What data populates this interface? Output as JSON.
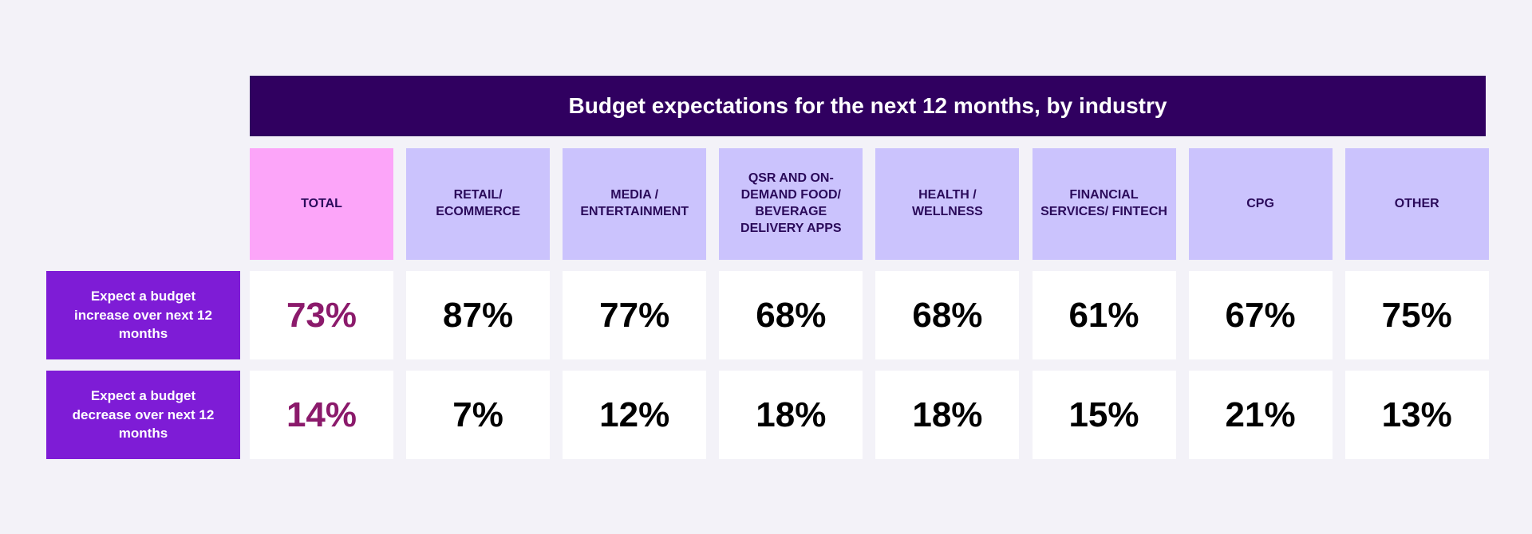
{
  "chart_data": {
    "type": "table",
    "title": "Budget expectations for the next 12 months, by industry",
    "columns": [
      "TOTAL",
      "RETAIL/ ECOMMERCE",
      "MEDIA / ENTERTAINMENT",
      "QSR AND ON-DEMAND FOOD/ BEVERAGE DELIVERY APPS",
      "HEALTH / WELLNESS",
      "FINANCIAL SERVICES/ FINTECH",
      "CPG",
      "OTHER"
    ],
    "rows": [
      {
        "label": "Expect a budget increase over next 12 months",
        "values": [
          "73%",
          "87%",
          "77%",
          "68%",
          "68%",
          "61%",
          "67%",
          "75%"
        ]
      },
      {
        "label": "Expect a budget decrease over next 12 months",
        "values": [
          "14%",
          "7%",
          "12%",
          "18%",
          "18%",
          "15%",
          "21%",
          "13%"
        ]
      }
    ]
  },
  "colors": {
    "title_bg": "#300060",
    "total_header": "#fca5f9",
    "header": "#cbc3fd",
    "row_label": "#7e1cd6",
    "total_value": "#8b1a6b",
    "background": "#f3f2f8"
  }
}
